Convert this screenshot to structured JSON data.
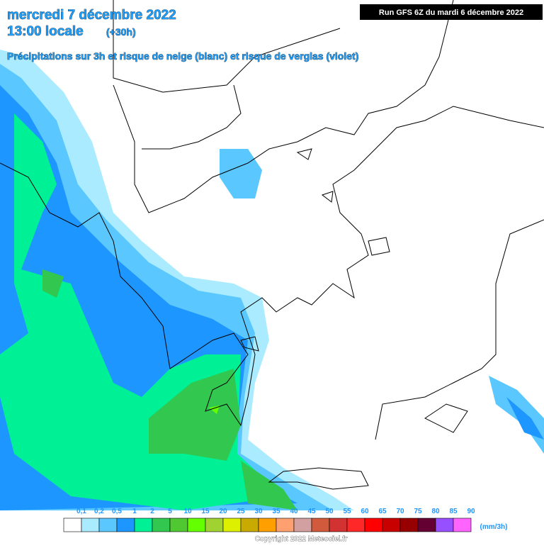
{
  "header": {
    "date": "mercredi 7 décembre 2022",
    "time": "13:00 locale",
    "offset": "(+30h)",
    "subtitle": "Précipitations sur 3h et risque de neige (blanc) et risque de verglas (violet)",
    "run": "Run GFS 6Z du mardi 6 décembre 2022"
  },
  "legend": {
    "unit": "(mm/3h)",
    "items": [
      {
        "label": "0,1",
        "color": "#ffffff"
      },
      {
        "label": "0,2",
        "color": "#aaebff"
      },
      {
        "label": "0,5",
        "color": "#5ac8ff"
      },
      {
        "label": "1",
        "color": "#1e96ff"
      },
      {
        "label": "2",
        "color": "#00f096"
      },
      {
        "label": "5",
        "color": "#32c850"
      },
      {
        "label": "10",
        "color": "#50c832"
      },
      {
        "label": "15",
        "color": "#64ff00"
      },
      {
        "label": "20",
        "color": "#a0d232"
      },
      {
        "label": "25",
        "color": "#dcf000"
      },
      {
        "label": "30",
        "color": "#c8aa00"
      },
      {
        "label": "35",
        "color": "#ffa000"
      },
      {
        "label": "40",
        "color": "#ffa070"
      },
      {
        "label": "45",
        "color": "#d2a0a0"
      },
      {
        "label": "50",
        "color": "#d25a3c"
      },
      {
        "label": "55",
        "color": "#d23232"
      },
      {
        "label": "60",
        "color": "#ff2828"
      },
      {
        "label": "65",
        "color": "#ff0000"
      },
      {
        "label": "70",
        "color": "#c80000"
      },
      {
        "label": "75",
        "color": "#960000"
      },
      {
        "label": "80",
        "color": "#640032"
      },
      {
        "label": "85",
        "color": "#9650ff"
      },
      {
        "label": "90",
        "color": "#ff64ff"
      }
    ]
  },
  "footer": {
    "copyright": "Copyright 2022 Meteociel.fr"
  }
}
